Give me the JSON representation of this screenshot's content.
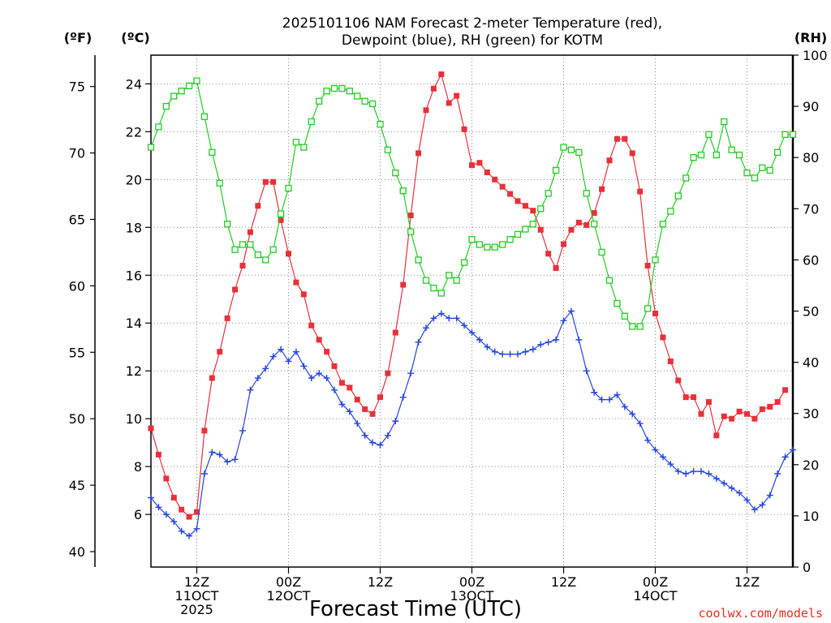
{
  "title_line1": "2025101106 NAM Forecast 2-meter Temperature (red),",
  "title_line2": "Dewpoint (blue), RH (green) for KOTM",
  "units": {
    "f": "(ºF)",
    "c": "(ºC)",
    "rh": "(RH)"
  },
  "xlabel": "Forecast Time (UTC)",
  "credit": "coolwx.com/models",
  "colors": {
    "temp": "#e8303a",
    "dew": "#2244dd",
    "rh": "#22cc22",
    "grid": "#888888"
  },
  "chart_data": {
    "type": "line",
    "title": "2025101106 NAM Forecast 2-meter Temperature (red), Dewpoint (blue), RH (green) for KOTM",
    "xlabel": "Forecast Time (UTC)",
    "x_unit": "hours since 2025-10-11 06Z",
    "xlim": [
      0,
      84
    ],
    "x_ticks": [
      {
        "x": 6,
        "lines": [
          "12Z",
          "11OCT",
          "2025"
        ]
      },
      {
        "x": 18,
        "lines": [
          "00Z",
          "12OCT"
        ]
      },
      {
        "x": 30,
        "lines": [
          "12Z"
        ]
      },
      {
        "x": 42,
        "lines": [
          "00Z",
          "13OCT"
        ]
      },
      {
        "x": 54,
        "lines": [
          "12Z"
        ]
      },
      {
        "x": 66,
        "lines": [
          "00Z",
          "14OCT"
        ]
      },
      {
        "x": 78,
        "lines": [
          "12Z"
        ]
      }
    ],
    "y_celsius": {
      "label": "(ºC)",
      "lim": [
        3.8,
        25.2
      ],
      "ticks": [
        6,
        8,
        10,
        12,
        14,
        16,
        18,
        20,
        22,
        24
      ]
    },
    "y_fahrenheit": {
      "label": "(ºF)",
      "ticks": [
        40,
        45,
        50,
        55,
        60,
        65,
        70,
        75
      ]
    },
    "y_rh": {
      "label": "(RH)",
      "lim": [
        0,
        100
      ],
      "ticks": [
        0,
        10,
        20,
        30,
        40,
        50,
        60,
        70,
        80,
        90,
        100
      ]
    },
    "grid": true,
    "series": [
      {
        "name": "2-meter Temperature",
        "axis": "celsius",
        "marker": "filled-square",
        "color": "#e8303a",
        "points": [
          [
            0,
            9.6
          ],
          [
            1,
            8.5
          ],
          [
            2,
            7.5
          ],
          [
            3,
            6.7
          ],
          [
            4,
            6.2
          ],
          [
            5,
            5.9
          ],
          [
            6,
            6.1
          ],
          [
            7,
            9.5
          ],
          [
            8,
            11.7
          ],
          [
            9,
            12.8
          ],
          [
            10,
            14.2
          ],
          [
            11,
            15.4
          ],
          [
            12,
            16.4
          ],
          [
            13,
            17.8
          ],
          [
            14,
            18.9
          ],
          [
            15,
            19.9
          ],
          [
            16,
            19.9
          ],
          [
            17,
            18.3
          ],
          [
            18,
            16.9
          ],
          [
            19,
            15.7
          ],
          [
            20,
            15.2
          ],
          [
            21,
            13.9
          ],
          [
            22,
            13.3
          ],
          [
            23,
            12.8
          ],
          [
            24,
            12.2
          ],
          [
            25,
            11.5
          ],
          [
            26,
            11.3
          ],
          [
            27,
            10.8
          ],
          [
            28,
            10.4
          ],
          [
            29,
            10.2
          ],
          [
            30,
            10.9
          ],
          [
            31,
            11.9
          ],
          [
            32,
            13.6
          ],
          [
            33,
            15.6
          ],
          [
            34,
            18.5
          ],
          [
            35,
            21.1
          ],
          [
            36,
            22.9
          ],
          [
            37,
            23.8
          ],
          [
            38,
            24.4
          ],
          [
            39,
            23.2
          ],
          [
            40,
            23.5
          ],
          [
            41,
            22.1
          ],
          [
            42,
            20.6
          ],
          [
            43,
            20.7
          ],
          [
            44,
            20.3
          ],
          [
            45,
            20.0
          ],
          [
            46,
            19.7
          ],
          [
            47,
            19.4
          ],
          [
            48,
            19.1
          ],
          [
            49,
            18.9
          ],
          [
            50,
            18.7
          ],
          [
            51,
            17.9
          ],
          [
            52,
            16.9
          ],
          [
            53,
            16.3
          ],
          [
            54,
            17.3
          ],
          [
            55,
            17.9
          ],
          [
            56,
            18.2
          ],
          [
            57,
            18.1
          ],
          [
            58,
            18.6
          ],
          [
            59,
            19.6
          ],
          [
            60,
            20.8
          ],
          [
            61,
            21.7
          ],
          [
            62,
            21.7
          ],
          [
            63,
            21.1
          ],
          [
            64,
            19.5
          ],
          [
            65,
            16.4
          ],
          [
            66,
            14.4
          ],
          [
            67,
            13.4
          ],
          [
            68,
            12.4
          ],
          [
            69,
            11.6
          ],
          [
            70,
            10.9
          ],
          [
            71,
            10.9
          ],
          [
            72,
            10.2
          ],
          [
            73,
            10.7
          ],
          [
            74,
            9.3
          ],
          [
            75,
            10.1
          ],
          [
            76,
            10.0
          ],
          [
            77,
            10.3
          ],
          [
            78,
            10.2
          ],
          [
            79,
            10.0
          ],
          [
            80,
            10.4
          ],
          [
            81,
            10.5
          ],
          [
            82,
            10.7
          ],
          [
            83,
            11.2
          ]
        ]
      },
      {
        "name": "Dewpoint",
        "axis": "celsius",
        "marker": "plus",
        "color": "#2244dd",
        "points": [
          [
            0,
            6.7
          ],
          [
            1,
            6.3
          ],
          [
            2,
            6.0
          ],
          [
            3,
            5.7
          ],
          [
            4,
            5.3
          ],
          [
            5,
            5.1
          ],
          [
            6,
            5.4
          ],
          [
            7,
            7.7
          ],
          [
            8,
            8.6
          ],
          [
            9,
            8.5
          ],
          [
            10,
            8.2
          ],
          [
            11,
            8.3
          ],
          [
            12,
            9.5
          ],
          [
            13,
            11.2
          ],
          [
            14,
            11.7
          ],
          [
            15,
            12.1
          ],
          [
            16,
            12.6
          ],
          [
            17,
            12.9
          ],
          [
            18,
            12.4
          ],
          [
            19,
            12.8
          ],
          [
            20,
            12.2
          ],
          [
            21,
            11.7
          ],
          [
            22,
            11.9
          ],
          [
            23,
            11.7
          ],
          [
            24,
            11.2
          ],
          [
            25,
            10.6
          ],
          [
            26,
            10.3
          ],
          [
            27,
            9.8
          ],
          [
            28,
            9.3
          ],
          [
            29,
            9.0
          ],
          [
            30,
            8.9
          ],
          [
            31,
            9.3
          ],
          [
            32,
            9.9
          ],
          [
            33,
            10.9
          ],
          [
            34,
            11.9
          ],
          [
            35,
            13.2
          ],
          [
            36,
            13.8
          ],
          [
            37,
            14.2
          ],
          [
            38,
            14.4
          ],
          [
            39,
            14.2
          ],
          [
            40,
            14.2
          ],
          [
            41,
            13.9
          ],
          [
            42,
            13.6
          ],
          [
            43,
            13.3
          ],
          [
            44,
            13.0
          ],
          [
            45,
            12.8
          ],
          [
            46,
            12.7
          ],
          [
            47,
            12.7
          ],
          [
            48,
            12.7
          ],
          [
            49,
            12.8
          ],
          [
            50,
            12.9
          ],
          [
            51,
            13.1
          ],
          [
            52,
            13.2
          ],
          [
            53,
            13.3
          ],
          [
            54,
            14.1
          ],
          [
            55,
            14.5
          ],
          [
            56,
            13.3
          ],
          [
            57,
            12.0
          ],
          [
            58,
            11.1
          ],
          [
            59,
            10.8
          ],
          [
            60,
            10.8
          ],
          [
            61,
            11.0
          ],
          [
            62,
            10.5
          ],
          [
            63,
            10.2
          ],
          [
            64,
            9.8
          ],
          [
            65,
            9.1
          ],
          [
            66,
            8.7
          ],
          [
            67,
            8.4
          ],
          [
            68,
            8.1
          ],
          [
            69,
            7.8
          ],
          [
            70,
            7.7
          ],
          [
            71,
            7.8
          ],
          [
            72,
            7.8
          ],
          [
            73,
            7.7
          ],
          [
            74,
            7.5
          ],
          [
            75,
            7.3
          ],
          [
            76,
            7.1
          ],
          [
            77,
            6.9
          ],
          [
            78,
            6.6
          ],
          [
            79,
            6.2
          ],
          [
            80,
            6.4
          ],
          [
            81,
            6.8
          ],
          [
            82,
            7.7
          ],
          [
            83,
            8.4
          ],
          [
            84,
            8.7
          ]
        ]
      },
      {
        "name": "RH",
        "axis": "rh",
        "marker": "open-square",
        "color": "#22cc22",
        "points": [
          [
            0,
            82
          ],
          [
            1,
            86
          ],
          [
            2,
            90
          ],
          [
            3,
            92
          ],
          [
            4,
            93
          ],
          [
            5,
            94
          ],
          [
            6,
            95
          ],
          [
            7,
            88
          ],
          [
            8,
            81
          ],
          [
            9,
            75
          ],
          [
            10,
            67
          ],
          [
            11,
            62
          ],
          [
            12,
            63
          ],
          [
            13,
            63
          ],
          [
            14,
            61
          ],
          [
            15,
            60
          ],
          [
            16,
            62
          ],
          [
            17,
            69
          ],
          [
            18,
            74
          ],
          [
            19,
            83
          ],
          [
            20,
            82
          ],
          [
            21,
            87
          ],
          [
            22,
            91
          ],
          [
            23,
            93
          ],
          [
            24,
            93.5
          ],
          [
            25,
            93.5
          ],
          [
            26,
            93
          ],
          [
            27,
            92
          ],
          [
            28,
            91
          ],
          [
            29,
            90.5
          ],
          [
            30,
            86.5
          ],
          [
            31,
            81.5
          ],
          [
            32,
            77
          ],
          [
            33,
            73.5
          ],
          [
            34,
            65.5
          ],
          [
            35,
            60
          ],
          [
            36,
            56
          ],
          [
            37,
            54.5
          ],
          [
            38,
            53.5
          ],
          [
            39,
            57
          ],
          [
            40,
            56
          ],
          [
            41,
            59.5
          ],
          [
            42,
            64
          ],
          [
            43,
            63
          ],
          [
            44,
            62.5
          ],
          [
            45,
            62.5
          ],
          [
            46,
            63
          ],
          [
            47,
            64
          ],
          [
            48,
            65
          ],
          [
            49,
            66
          ],
          [
            50,
            67
          ],
          [
            51,
            70
          ],
          [
            52,
            73
          ],
          [
            53,
            77.5
          ],
          [
            54,
            82
          ],
          [
            55,
            81.5
          ],
          [
            56,
            81
          ],
          [
            57,
            73
          ],
          [
            58,
            67
          ],
          [
            59,
            61.5
          ],
          [
            60,
            56
          ],
          [
            61,
            51.5
          ],
          [
            62,
            49
          ],
          [
            63,
            47
          ],
          [
            64,
            47
          ],
          [
            65,
            50.5
          ],
          [
            66,
            60
          ],
          [
            67,
            67
          ],
          [
            68,
            69.5
          ],
          [
            69,
            72.5
          ],
          [
            70,
            76
          ],
          [
            71,
            80
          ],
          [
            72,
            80.5
          ],
          [
            73,
            84.5
          ],
          [
            74,
            80.5
          ],
          [
            75,
            87
          ],
          [
            76,
            81.5
          ],
          [
            77,
            80.5
          ],
          [
            78,
            77
          ],
          [
            79,
            76
          ],
          [
            80,
            78
          ],
          [
            81,
            77.5
          ],
          [
            82,
            81
          ],
          [
            83,
            84.5
          ],
          [
            84,
            84.5
          ]
        ]
      }
    ]
  }
}
